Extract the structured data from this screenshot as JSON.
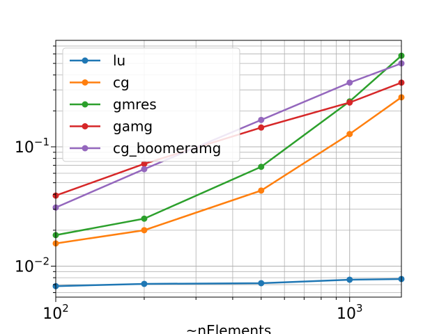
{
  "chart_data": {
    "type": "line",
    "xscale": "log",
    "yscale": "log",
    "xlabel": "~nElements",
    "ylabel": "",
    "xlim": [
      100,
      1500
    ],
    "ylim": [
      0.0055,
      0.78
    ],
    "grid": true,
    "legend_position": "top-left",
    "x_ticks": [
      {
        "value": 100,
        "base": "10",
        "exp": "2"
      },
      {
        "value": 1000,
        "base": "10",
        "exp": "3"
      }
    ],
    "y_ticks": [
      {
        "value": 0.01,
        "base": "10",
        "exp": "−2"
      },
      {
        "value": 0.1,
        "base": "10",
        "exp": "−1"
      }
    ],
    "x": [
      100,
      200,
      500,
      1000,
      1500
    ],
    "series": [
      {
        "name": "lu",
        "color": "#1f77b4",
        "values": [
          0.0068,
          0.0071,
          0.0072,
          0.0077,
          0.0078
        ]
      },
      {
        "name": "cg",
        "color": "#ff7f0e",
        "values": [
          0.0155,
          0.02,
          0.043,
          0.128,
          0.26
        ]
      },
      {
        "name": "gmres",
        "color": "#2ca02c",
        "values": [
          0.0182,
          0.025,
          0.068,
          0.24,
          0.58
        ]
      },
      {
        "name": "gamg",
        "color": "#d62728",
        "values": [
          0.039,
          0.072,
          0.145,
          0.235,
          0.345
        ]
      },
      {
        "name": "cg_boomeramg",
        "color": "#9467bd",
        "values": [
          0.031,
          0.065,
          0.168,
          0.345,
          0.5
        ]
      }
    ]
  }
}
